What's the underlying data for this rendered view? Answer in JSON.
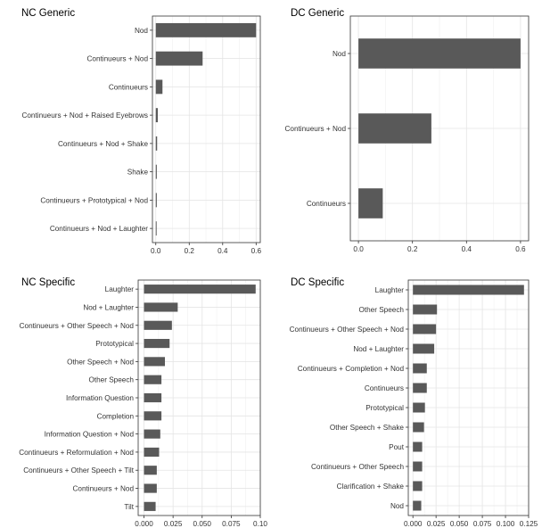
{
  "chart_data": [
    {
      "type": "bar",
      "orientation": "horizontal",
      "title": "NC Generic",
      "categories": [
        "Nod",
        "Continueurs + Nod",
        "Continueurs",
        "Continueurs + Nod + Raised Eyebrows",
        "Continueurs + Nod + Shake",
        "Shake",
        "Continueurs + Prototypical + Nod",
        "Continueurs + Nod + Laughter"
      ],
      "values": [
        0.6,
        0.28,
        0.04,
        0.012,
        0.008,
        0.006,
        0.006,
        0.005
      ],
      "xlim": [
        -0.02,
        0.625
      ],
      "xticks": [
        0.0,
        0.2,
        0.4,
        0.6
      ],
      "xtick_labels": [
        "0.0",
        "0.2",
        "0.4",
        "0.6"
      ],
      "bar_color": "#595959",
      "grid": true
    },
    {
      "type": "bar",
      "orientation": "horizontal",
      "title": "DC Generic",
      "categories": [
        "Nod",
        "Continueurs + Nod",
        "Continueurs"
      ],
      "values": [
        0.6,
        0.27,
        0.09
      ],
      "xlim": [
        -0.03,
        0.63
      ],
      "xticks": [
        0.0,
        0.2,
        0.4,
        0.6
      ],
      "xtick_labels": [
        "0.0",
        "0.2",
        "0.4",
        "0.6"
      ],
      "bar_color": "#595959",
      "grid": true
    },
    {
      "type": "bar",
      "orientation": "horizontal",
      "title": "NC Specific",
      "categories": [
        "Laughter",
        "Nod + Laughter",
        "Continueurs + Other Speech + Nod",
        "Prototypical",
        "Other Speech + Nod",
        "Other Speech",
        "Information Question",
        "Completion",
        "Information Question + Nod",
        "Continueurs + Reformulation + Nod",
        "Continueurs + Other Speech + Tilt",
        "Continueurs + Nod",
        "Tilt"
      ],
      "values": [
        0.096,
        0.029,
        0.024,
        0.022,
        0.018,
        0.015,
        0.015,
        0.015,
        0.014,
        0.013,
        0.011,
        0.011,
        0.01
      ],
      "xlim": [
        -0.005,
        0.1
      ],
      "xticks": [
        0.0,
        0.025,
        0.05,
        0.075,
        0.1
      ],
      "xtick_labels": [
        "0.000",
        "0.025",
        "0.050",
        "0.075",
        "0.10"
      ],
      "bar_color": "#595959",
      "grid": true
    },
    {
      "type": "bar",
      "orientation": "horizontal",
      "title": "DC Specific",
      "categories": [
        "Laughter",
        "Other Speech",
        "Continueurs + Other Speech + Nod",
        "Nod + Laughter",
        "Continueurs + Completion + Nod",
        "Continueurs",
        "Prototypical",
        "Other Speech + Shake",
        "Pout",
        "Continueurs + Other Speech",
        "Clarification + Shake",
        "Nod"
      ],
      "values": [
        0.12,
        0.026,
        0.025,
        0.023,
        0.015,
        0.015,
        0.013,
        0.012,
        0.01,
        0.01,
        0.01,
        0.009
      ],
      "xlim": [
        -0.005,
        0.125
      ],
      "xticks": [
        0.0,
        0.025,
        0.05,
        0.075,
        0.1,
        0.125
      ],
      "xtick_labels": [
        "0.000",
        "0.025",
        "0.050",
        "0.075",
        "0.100",
        "0.125"
      ],
      "bar_color": "#595959",
      "grid": true
    }
  ]
}
